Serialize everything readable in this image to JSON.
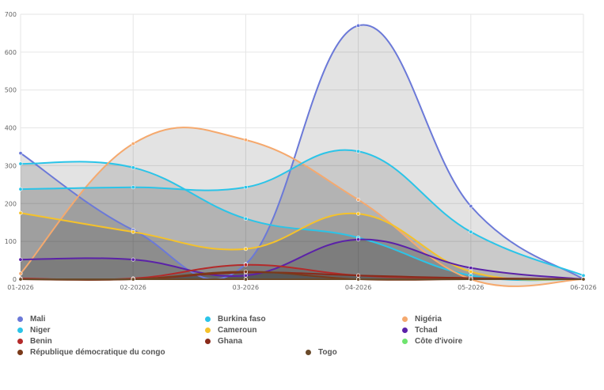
{
  "chart_data": {
    "type": "area",
    "x": [
      "01-2026",
      "02-2026",
      "03-2026",
      "04-2026",
      "05-2026",
      "06-2026"
    ],
    "ylim": [
      0,
      700
    ],
    "yticks": [
      0,
      100,
      200,
      300,
      400,
      500,
      600,
      700
    ],
    "grid": true,
    "legend_position": "bottom",
    "series": [
      {
        "name": "Mali",
        "color": "#6b79d8",
        "values": [
          333,
          130,
          40,
          670,
          193,
          0
        ]
      },
      {
        "name": "Burkina faso",
        "color": "#2bc4e8",
        "values": [
          305,
          295,
          160,
          110,
          10,
          0
        ]
      },
      {
        "name": "Nigéria",
        "color": "#f5a96e",
        "values": [
          15,
          358,
          368,
          210,
          0,
          0
        ]
      },
      {
        "name": "Niger",
        "color": "#2bc4e8",
        "values": [
          238,
          243,
          243,
          338,
          125,
          10
        ]
      },
      {
        "name": "Cameroun",
        "color": "#f5c22a",
        "values": [
          175,
          125,
          80,
          173,
          20,
          0
        ]
      },
      {
        "name": "Tchad",
        "color": "#5b22a8",
        "values": [
          52,
          52,
          10,
          105,
          30,
          0
        ]
      },
      {
        "name": "Benin",
        "color": "#b42a2a",
        "values": [
          2,
          2,
          38,
          10,
          3,
          0
        ]
      },
      {
        "name": "Ghana",
        "color": "#8a2a1a",
        "values": [
          0,
          0,
          18,
          10,
          3,
          0
        ]
      },
      {
        "name": "Côte d'ivoire",
        "color": "#6ee46e",
        "values": [
          0,
          0,
          0,
          0,
          0,
          0
        ]
      },
      {
        "name": "République démocratique du congo",
        "color": "#7a3a1a",
        "values": [
          0,
          0,
          20,
          0,
          0,
          0
        ]
      },
      {
        "name": "Togo",
        "color": "#6a4a2a",
        "values": [
          0,
          0,
          0,
          0,
          0,
          0
        ]
      }
    ]
  }
}
